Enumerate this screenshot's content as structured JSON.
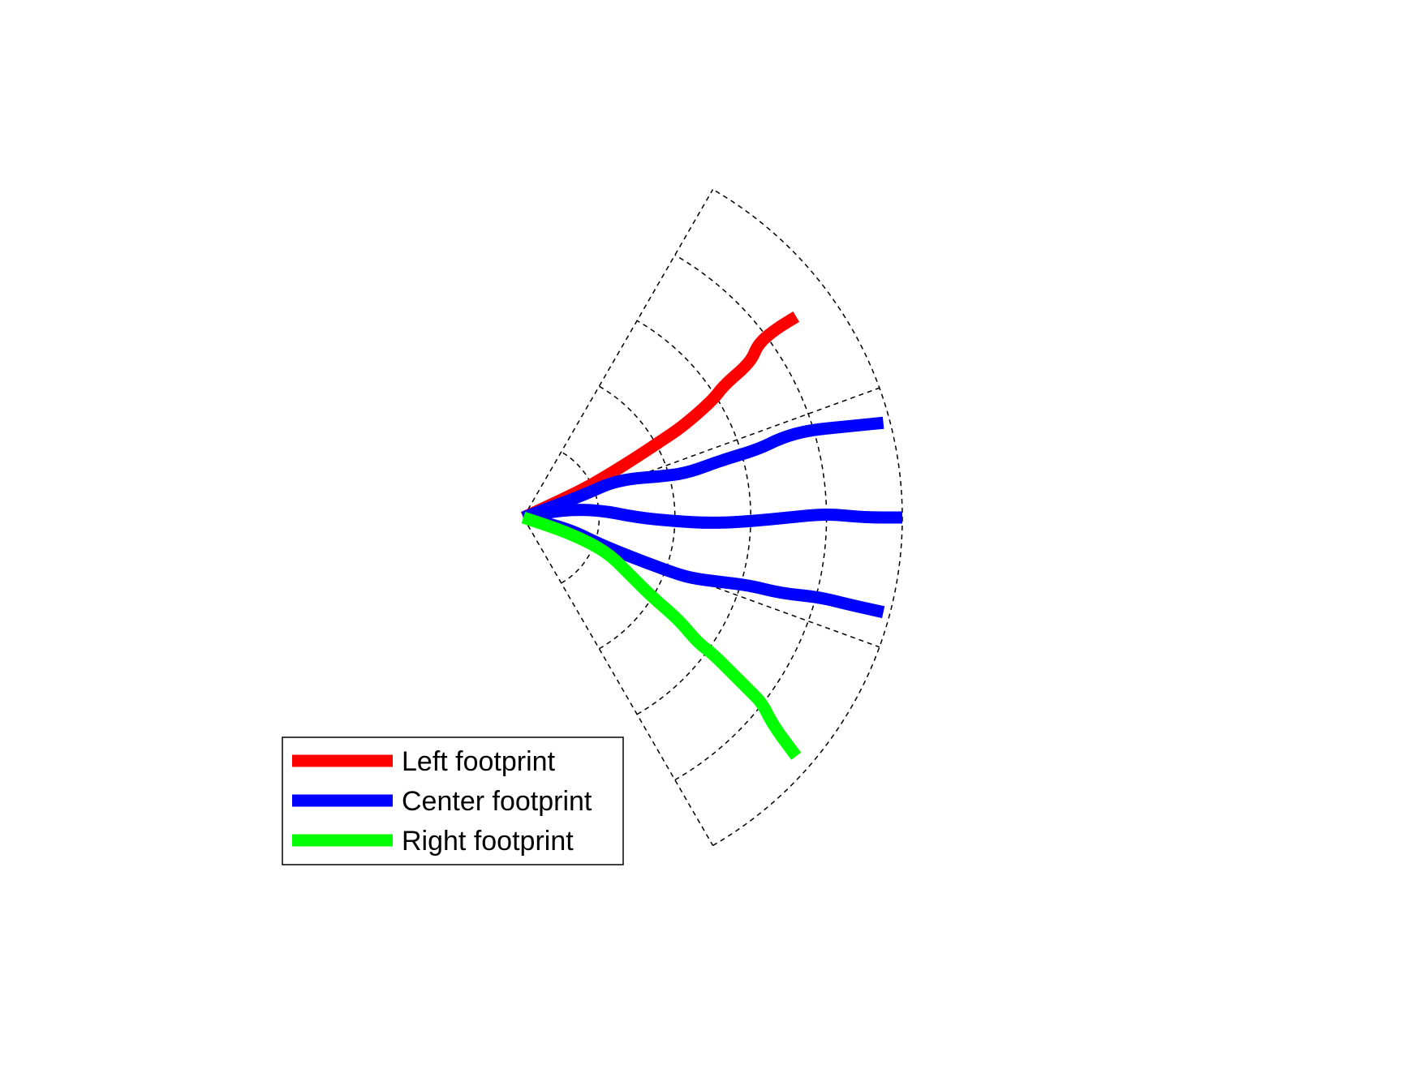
{
  "chart_data": {
    "type": "line",
    "title": "",
    "xlabel": "",
    "ylabel": "",
    "grid": true,
    "grid_style": "polar sector, dashed",
    "sector_angle_deg": [
      -60,
      60
    ],
    "ring_radii": [
      0.2,
      0.4,
      0.6,
      0.8,
      1.0
    ],
    "radial_angles_deg": [
      -60,
      -20,
      20,
      60
    ],
    "legend_position": "bottom-left",
    "series": [
      {
        "name": "Left footprint",
        "color": "#ff0000",
        "x": [
          0.0,
          0.15,
          0.22,
          0.3,
          0.36,
          0.42,
          0.5,
          0.53,
          0.6,
          0.62,
          0.67,
          0.72
        ],
        "y": [
          0.0,
          0.07,
          0.11,
          0.16,
          0.2,
          0.24,
          0.31,
          0.35,
          0.41,
          0.46,
          0.5,
          0.53
        ]
      },
      {
        "name": "Center footprint",
        "color": "#0000ff",
        "x": [
          0.0,
          0.08,
          0.16,
          0.25,
          0.38,
          0.44,
          0.52,
          0.62,
          0.68,
          0.75,
          0.85,
          0.95
        ],
        "y": [
          0.0,
          0.03,
          0.06,
          0.1,
          0.11,
          0.12,
          0.15,
          0.18,
          0.21,
          0.23,
          0.24,
          0.25
        ]
      },
      {
        "name": "Center footprint",
        "color": "#0000ff",
        "x": [
          0.0,
          0.1,
          0.2,
          0.3,
          0.4,
          0.5,
          0.6,
          0.7,
          0.8,
          0.9,
          1.0
        ],
        "y": [
          0.0,
          0.02,
          0.02,
          0.0,
          -0.01,
          -0.015,
          -0.01,
          0.0,
          0.01,
          0.0,
          0.0
        ]
      },
      {
        "name": "Center footprint",
        "color": "#0000ff",
        "x": [
          0.0,
          0.12,
          0.2,
          0.3,
          0.38,
          0.44,
          0.52,
          0.6,
          0.68,
          0.78,
          0.86,
          0.95
        ],
        "y": [
          0.0,
          -0.03,
          -0.07,
          -0.11,
          -0.14,
          -0.16,
          -0.17,
          -0.18,
          -0.2,
          -0.21,
          -0.23,
          -0.25
        ]
      },
      {
        "name": "Right footprint",
        "color": "#00ff00",
        "x": [
          0.0,
          0.12,
          0.22,
          0.28,
          0.34,
          0.41,
          0.46,
          0.5,
          0.56,
          0.6,
          0.63,
          0.66,
          0.72
        ],
        "y": [
          0.0,
          -0.04,
          -0.09,
          -0.15,
          -0.21,
          -0.27,
          -0.33,
          -0.36,
          -0.42,
          -0.46,
          -0.49,
          -0.55,
          -0.63
        ]
      }
    ],
    "legend": [
      {
        "label": "Left footprint",
        "color": "#ff0000"
      },
      {
        "label": "Center footprint",
        "color": "#0000ff"
      },
      {
        "label": "Right footprint",
        "color": "#00ff00"
      }
    ]
  }
}
